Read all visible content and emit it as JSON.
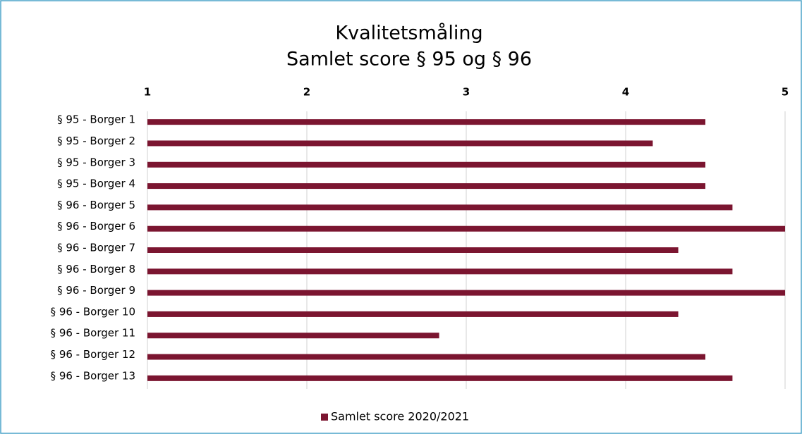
{
  "chart_data": {
    "type": "barh",
    "title": "Kvalitetsmåling",
    "subtitle": "Samlet score § 95 og § 96",
    "categories": [
      "§ 95 - Borger 1",
      "§ 95 - Borger 2",
      "§ 95 - Borger 3",
      "§ 95 - Borger 4",
      "§ 96 - Borger 5",
      "§ 96 - Borger 6",
      "§ 96 - Borger 7",
      "§ 96 - Borger 8",
      "§ 96 - Borger 9",
      "§ 96 - Borger 10",
      "§ 96 - Borger 11",
      "§ 96 - Borger 12",
      "§ 96 - Borger 13"
    ],
    "series": [
      {
        "name": "Samlet score 2020/2021",
        "color": "#7b1530",
        "values": [
          4.5,
          4.17,
          4.5,
          4.5,
          4.67,
          5,
          4.33,
          4.67,
          5,
          4.33,
          2.83,
          4.5,
          4.67
        ]
      }
    ],
    "xlim": [
      1,
      5
    ],
    "xticks": [
      1,
      2,
      3,
      4,
      5
    ],
    "grid": true,
    "legend": "bottom"
  }
}
